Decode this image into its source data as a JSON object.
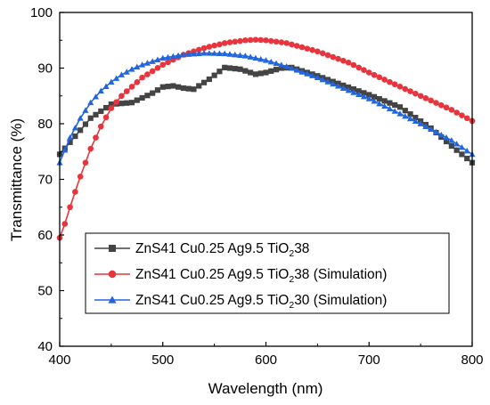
{
  "chart_data": {
    "type": "line",
    "title": "",
    "xlabel": "Wavelength (nm)",
    "ylabel": "Transmittance (%)",
    "xlim": [
      400,
      800
    ],
    "ylim": [
      40,
      100
    ],
    "xticks": [
      400,
      500,
      600,
      700,
      800
    ],
    "yticks": [
      40,
      50,
      60,
      70,
      80,
      90,
      100
    ],
    "grid": false,
    "legend_position": "bottom-left",
    "series": [
      {
        "name": "ZnS41 Cu0.25 Ag9.5 TiO238",
        "legend_parts": [
          "ZnS41 Cu0.25 Ag9.5 TiO",
          "2",
          "38"
        ],
        "color": "#444444",
        "marker": "square",
        "x": [
          400,
          430,
          450,
          470,
          490,
          500,
          510,
          520,
          530,
          545,
          560,
          575,
          590,
          600,
          615,
          625,
          650,
          700,
          730,
          760,
          780,
          800
        ],
        "y": [
          74.5,
          81.0,
          83.5,
          83.8,
          85.5,
          86.6,
          86.8,
          86.4,
          86.2,
          88.0,
          90.1,
          89.8,
          88.9,
          89.2,
          90.0,
          90.1,
          88.6,
          85.2,
          83.0,
          79.2,
          76.0,
          73.0
        ]
      },
      {
        "name": "ZnS41 Cu0.25 Ag9.5 TiO238 (Simulation)",
        "legend_parts": [
          "ZnS41 Cu0.25 Ag9.5 TiO",
          "2",
          "38 (Simulation)"
        ],
        "color": "#e8343c",
        "marker": "circle",
        "x": [
          400,
          405,
          410,
          420,
          430,
          440,
          450,
          460,
          480,
          500,
          520,
          540,
          560,
          580,
          590,
          600,
          620,
          650,
          680,
          700,
          720,
          750,
          780,
          800
        ],
        "y": [
          59.5,
          62.0,
          65.0,
          70.5,
          75.5,
          79.5,
          82.8,
          85.0,
          88.3,
          90.6,
          92.4,
          93.6,
          94.5,
          95.0,
          95.1,
          95.0,
          94.5,
          93.0,
          91.0,
          89.2,
          87.5,
          85.0,
          82.5,
          80.5
        ]
      },
      {
        "name": "ZnS41 Cu0.25 Ag9.5 TiO230 (Simulation)",
        "legend_parts": [
          "ZnS41 Cu0.25 Ag9.5 TiO",
          "2",
          "30 (Simulation)"
        ],
        "color": "#2266dd",
        "marker": "triangle",
        "x": [
          400,
          410,
          420,
          430,
          440,
          450,
          460,
          470,
          480,
          500,
          520,
          540,
          560,
          580,
          600,
          620,
          650,
          680,
          700,
          720,
          750,
          780,
          800
        ],
        "y": [
          73.0,
          77.5,
          81.0,
          83.8,
          85.9,
          87.5,
          88.8,
          89.8,
          90.6,
          91.8,
          92.4,
          92.7,
          92.6,
          92.2,
          91.4,
          90.3,
          88.3,
          86.0,
          84.5,
          82.7,
          80.0,
          77.0,
          74.5
        ]
      }
    ]
  }
}
